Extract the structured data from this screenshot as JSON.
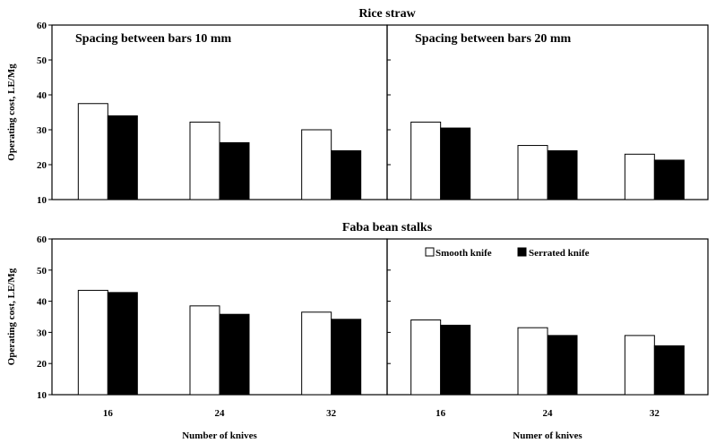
{
  "figure": {
    "group_titles": [
      "Rice straw",
      "Faba bean stalks"
    ],
    "colors": {
      "smooth": "#ffffff",
      "serrated": "#000000",
      "outline": "#000000"
    }
  },
  "legend": {
    "items": [
      {
        "name": "Smooth knife",
        "color": "#ffffff"
      },
      {
        "name": "Serrated knife",
        "color": "#000000"
      }
    ],
    "placement": "top-right of bottom-right panel"
  },
  "chart_data": [
    {
      "type": "bar",
      "title": "Spacing between bars 10 mm",
      "group": "Rice straw",
      "categories": [
        "16",
        "24",
        "32"
      ],
      "series": [
        {
          "name": "Smooth knife",
          "values": [
            37.5,
            32.2,
            30.0
          ]
        },
        {
          "name": "Serrated knife",
          "values": [
            34.0,
            26.3,
            24.0
          ]
        }
      ],
      "xlabel": "",
      "ylabel": "Operating cost, LE/Mg",
      "ylim": [
        10,
        60
      ],
      "yticks": [
        "10",
        "20",
        "30",
        "40",
        "50",
        "60"
      ],
      "grid": false
    },
    {
      "type": "bar",
      "title": "Spacing between bars 20 mm",
      "group": "Rice straw",
      "categories": [
        "16",
        "24",
        "32"
      ],
      "series": [
        {
          "name": "Smooth knife",
          "values": [
            32.2,
            25.5,
            23.0
          ]
        },
        {
          "name": "Serrated knife",
          "values": [
            30.5,
            24.0,
            21.3
          ]
        }
      ],
      "xlabel": "",
      "ylabel": "",
      "ylim": [
        10,
        60
      ],
      "yticks": [],
      "grid": false
    },
    {
      "type": "bar",
      "title": "",
      "group": "Faba bean stalks",
      "categories": [
        "16",
        "24",
        "32"
      ],
      "series": [
        {
          "name": "Smooth knife",
          "values": [
            43.5,
            38.5,
            36.5
          ]
        },
        {
          "name": "Serrated knife",
          "values": [
            42.8,
            35.8,
            34.2
          ]
        }
      ],
      "xlabel": "Number of knives",
      "ylabel": "Operating cost, LE/Mg",
      "ylim": [
        10,
        60
      ],
      "yticks": [
        "10",
        "20",
        "30",
        "40",
        "50",
        "60"
      ],
      "grid": false
    },
    {
      "type": "bar",
      "title": "",
      "group": "Faba bean stalks",
      "categories": [
        "16",
        "24",
        "32"
      ],
      "series": [
        {
          "name": "Smooth knife",
          "values": [
            34.0,
            31.5,
            29.0
          ]
        },
        {
          "name": "Serrated knife",
          "values": [
            32.3,
            29.0,
            25.7
          ]
        }
      ],
      "xlabel": "Numer of knives",
      "ylabel": "",
      "ylim": [
        10,
        60
      ],
      "yticks": [],
      "grid": false
    }
  ]
}
